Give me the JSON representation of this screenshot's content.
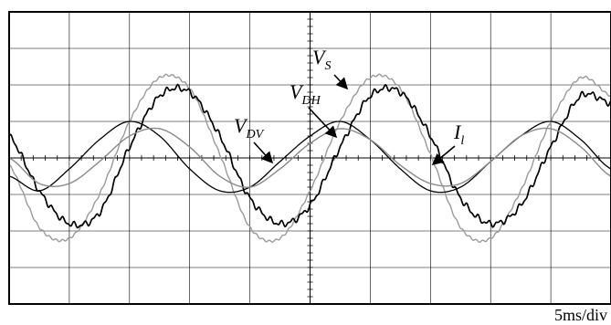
{
  "chart_data": {
    "type": "line",
    "title": "",
    "xlabel": "",
    "ylabel": "",
    "timebase": "5ms/div",
    "grid": true,
    "divisions": {
      "x": 10,
      "y": 8
    },
    "xlim": [
      0,
      50
    ],
    "ylim": [
      -4,
      4
    ],
    "x_unit": "ms",
    "y_unit": "div",
    "series": [
      {
        "name": "V_S",
        "color": "#9a9a9a",
        "x": [
          0,
          2.5,
          5,
          7.5,
          10,
          12.5,
          15,
          17.5,
          20,
          22.5,
          25,
          27.5,
          30,
          32.5,
          35,
          37.5,
          40,
          42.5,
          45,
          47.5,
          50
        ],
        "y": [
          -0.2,
          -1.9,
          -2.2,
          -1.0,
          1.0,
          2.2,
          1.9,
          0.1,
          -1.9,
          -2.2,
          -0.9,
          1.0,
          2.2,
          1.9,
          0.1,
          -1.9,
          -2.2,
          -0.9,
          1.0,
          2.2,
          1.7
        ]
      },
      {
        "name": "V_DH",
        "color": "#000000",
        "x": [
          0,
          2.5,
          5,
          7.5,
          10,
          12.5,
          15,
          17.5,
          20,
          22.5,
          25,
          27.5,
          30,
          32.5,
          35,
          37.5,
          40,
          42.5,
          45,
          47.5,
          50
        ],
        "y": [
          0.6,
          -0.9,
          -1.8,
          -1.5,
          0.3,
          1.7,
          1.8,
          0.6,
          -1.1,
          -1.8,
          -1.3,
          0.3,
          1.7,
          1.8,
          0.6,
          -1.1,
          -1.8,
          -1.3,
          0.3,
          1.7,
          1.5
        ]
      },
      {
        "name": "V_DV",
        "color": "#000000",
        "x": [
          0,
          2.5,
          5,
          7.5,
          10,
          12.5,
          15,
          17.5,
          20,
          22.5,
          25,
          27.5,
          30,
          32.5,
          35,
          37.5,
          40,
          42.5,
          45,
          47.5,
          50
        ],
        "y": [
          -0.5,
          -0.9,
          -0.3,
          0.5,
          1.0,
          0.6,
          -0.3,
          -0.9,
          -0.8,
          -0.1,
          0.6,
          1.0,
          0.5,
          -0.3,
          -0.9,
          -0.8,
          -0.1,
          0.6,
          1.0,
          0.5,
          -0.3
        ]
      },
      {
        "name": "I_l",
        "color": "#8a8a8a",
        "x": [
          0,
          2.5,
          5,
          7.5,
          10,
          12.5,
          15,
          17.5,
          20,
          22.5,
          25,
          27.5,
          30,
          32.5,
          35,
          37.5,
          40,
          42.5,
          45,
          47.5,
          50
        ],
        "y": [
          0.0,
          -0.7,
          -0.7,
          -0.1,
          0.6,
          0.8,
          0.3,
          -0.5,
          -0.8,
          -0.3,
          0.4,
          0.8,
          0.5,
          -0.2,
          -0.7,
          -0.7,
          -0.1,
          0.6,
          0.8,
          0.3,
          -0.5
        ]
      }
    ],
    "annotations": [
      {
        "text": "V",
        "sub": "S",
        "series": "V_S"
      },
      {
        "text": "V",
        "sub": "DH",
        "series": "V_DH"
      },
      {
        "text": "V",
        "sub": "DV",
        "series": "V_DV"
      },
      {
        "text": "I",
        "sub": "l",
        "series": "I_l"
      }
    ]
  }
}
